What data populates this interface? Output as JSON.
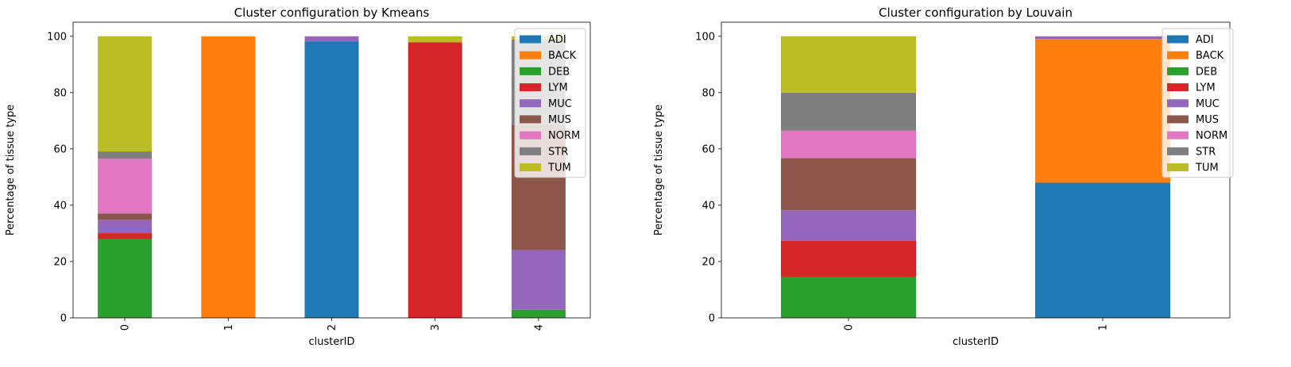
{
  "chart_data": [
    {
      "type": "bar",
      "stacked": true,
      "title": "Cluster configuration by Kmeans",
      "xlabel": "clusterID",
      "ylabel": "Percentage of tissue type",
      "ylim": [
        0,
        105
      ],
      "yticks": [
        0,
        20,
        40,
        60,
        80,
        100
      ],
      "categories": [
        "0",
        "1",
        "2",
        "3",
        "4"
      ],
      "legend_position": "top-right",
      "series": [
        {
          "name": "ADI",
          "color": "#1f77b4",
          "values": [
            0,
            0,
            98.2,
            0,
            0
          ]
        },
        {
          "name": "BACK",
          "color": "#ff7f0e",
          "values": [
            0,
            100,
            0,
            0,
            0
          ]
        },
        {
          "name": "DEB",
          "color": "#2ca02c",
          "values": [
            27.9,
            0,
            0,
            0,
            2.9
          ]
        },
        {
          "name": "LYM",
          "color": "#d62728",
          "values": [
            2.2,
            0,
            0,
            97.9,
            0
          ]
        },
        {
          "name": "MUC",
          "color": "#9467bd",
          "values": [
            4.7,
            0,
            1.8,
            0,
            21.2
          ]
        },
        {
          "name": "MUS",
          "color": "#8c564b",
          "values": [
            2.3,
            0,
            0,
            0,
            44.3
          ]
        },
        {
          "name": "NORM",
          "color": "#e377c2",
          "values": [
            19.4,
            0,
            0,
            0,
            0
          ]
        },
        {
          "name": "STR",
          "color": "#7f7f7f",
          "values": [
            2.6,
            0,
            0,
            0,
            30.4
          ]
        },
        {
          "name": "TUM",
          "color": "#bcbd22",
          "values": [
            40.9,
            0,
            0,
            2.1,
            1.2
          ]
        }
      ]
    },
    {
      "type": "bar",
      "stacked": true,
      "title": "Cluster configuration by Louvain",
      "xlabel": "clusterID",
      "ylabel": "Percentage of tissue type",
      "ylim": [
        0,
        105
      ],
      "yticks": [
        0,
        20,
        40,
        60,
        80,
        100
      ],
      "categories": [
        "0",
        "1"
      ],
      "legend_position": "top-right",
      "series": [
        {
          "name": "ADI",
          "color": "#1f77b4",
          "values": [
            0,
            48.0
          ]
        },
        {
          "name": "BACK",
          "color": "#ff7f0e",
          "values": [
            0,
            51.0
          ]
        },
        {
          "name": "DEB",
          "color": "#2ca02c",
          "values": [
            14.5,
            0
          ]
        },
        {
          "name": "LYM",
          "color": "#d62728",
          "values": [
            12.9,
            0
          ]
        },
        {
          "name": "MUC",
          "color": "#9467bd",
          "values": [
            10.8,
            1.0
          ]
        },
        {
          "name": "MUS",
          "color": "#8c564b",
          "values": [
            18.5,
            0
          ]
        },
        {
          "name": "NORM",
          "color": "#e377c2",
          "values": [
            9.8,
            0
          ]
        },
        {
          "name": "STR",
          "color": "#7f7f7f",
          "values": [
            13.5,
            0
          ]
        },
        {
          "name": "TUM",
          "color": "#bcbd22",
          "values": [
            20.0,
            0
          ]
        }
      ]
    }
  ]
}
